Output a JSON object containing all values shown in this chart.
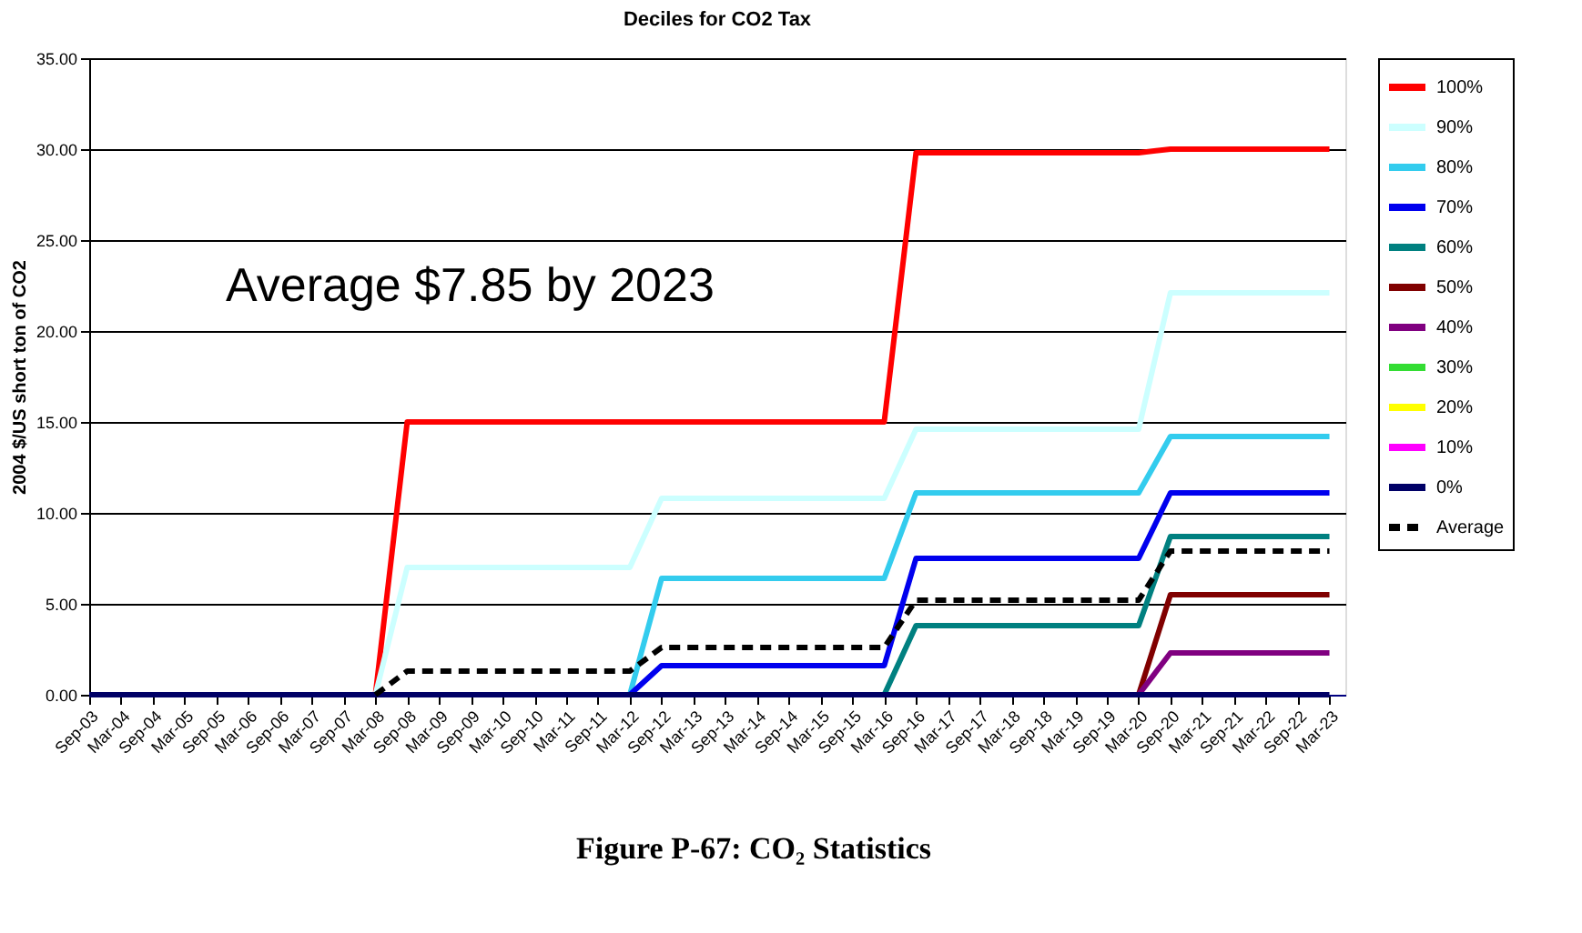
{
  "chart_data": {
    "type": "line",
    "title": "Deciles for CO2 Tax",
    "ylabel": "2004 $/US short ton of CO2",
    "categories": [
      "Sep-03",
      "Mar-04",
      "Sep-04",
      "Mar-05",
      "Sep-05",
      "Mar-06",
      "Sep-06",
      "Mar-07",
      "Sep-07",
      "Mar-08",
      "Sep-08",
      "Mar-09",
      "Sep-09",
      "Mar-10",
      "Sep-10",
      "Mar-11",
      "Sep-11",
      "Mar-12",
      "Sep-12",
      "Mar-13",
      "Sep-13",
      "Mar-14",
      "Sep-14",
      "Mar-15",
      "Sep-15",
      "Mar-16",
      "Sep-16",
      "Mar-17",
      "Sep-17",
      "Mar-18",
      "Sep-18",
      "Mar-19",
      "Sep-19",
      "Mar-20",
      "Sep-20",
      "Mar-21",
      "Sep-21",
      "Mar-22",
      "Sep-22",
      "Mar-23"
    ],
    "series": [
      {
        "name": "100%",
        "color": "#ff0000",
        "values": [
          null,
          null,
          null,
          null,
          null,
          null,
          null,
          null,
          null,
          0,
          15,
          15,
          15,
          15,
          15,
          15,
          15,
          15,
          15,
          15,
          15,
          15,
          15,
          15,
          15,
          15,
          29.8,
          29.8,
          29.8,
          29.8,
          29.8,
          29.8,
          29.8,
          29.8,
          30,
          30,
          30,
          30,
          30,
          30
        ]
      },
      {
        "name": "90%",
        "color": "#ccffff",
        "values": [
          null,
          null,
          null,
          null,
          null,
          null,
          null,
          null,
          null,
          0,
          7,
          7,
          7,
          7,
          7,
          7,
          7,
          7,
          10.8,
          10.8,
          10.8,
          10.8,
          10.8,
          10.8,
          10.8,
          10.8,
          14.6,
          14.6,
          14.6,
          14.6,
          14.6,
          14.6,
          14.6,
          14.6,
          22.1,
          22.1,
          22.1,
          22.1,
          22.1,
          22.1
        ]
      },
      {
        "name": "80%",
        "color": "#33ccee",
        "values": [
          null,
          null,
          null,
          null,
          null,
          null,
          null,
          null,
          null,
          null,
          null,
          null,
          null,
          null,
          null,
          null,
          null,
          0,
          6.4,
          6.4,
          6.4,
          6.4,
          6.4,
          6.4,
          6.4,
          6.4,
          11.1,
          11.1,
          11.1,
          11.1,
          11.1,
          11.1,
          11.1,
          11.1,
          14.2,
          14.2,
          14.2,
          14.2,
          14.2,
          14.2
        ]
      },
      {
        "name": "70%",
        "color": "#0000ee",
        "values": [
          null,
          null,
          null,
          null,
          null,
          null,
          null,
          null,
          null,
          null,
          null,
          null,
          null,
          null,
          null,
          null,
          null,
          0,
          1.6,
          1.6,
          1.6,
          1.6,
          1.6,
          1.6,
          1.6,
          1.6,
          7.5,
          7.5,
          7.5,
          7.5,
          7.5,
          7.5,
          7.5,
          7.5,
          11.1,
          11.1,
          11.1,
          11.1,
          11.1,
          11.1
        ]
      },
      {
        "name": "60%",
        "color": "#008080",
        "values": [
          null,
          null,
          null,
          null,
          null,
          null,
          null,
          null,
          null,
          null,
          null,
          null,
          null,
          null,
          null,
          null,
          null,
          null,
          null,
          null,
          null,
          null,
          null,
          null,
          null,
          0,
          3.8,
          3.8,
          3.8,
          3.8,
          3.8,
          3.8,
          3.8,
          3.8,
          8.7,
          8.7,
          8.7,
          8.7,
          8.7,
          8.7
        ]
      },
      {
        "name": "50%",
        "color": "#800000",
        "values": [
          null,
          null,
          null,
          null,
          null,
          null,
          null,
          null,
          null,
          null,
          null,
          null,
          null,
          null,
          null,
          null,
          null,
          null,
          null,
          null,
          null,
          null,
          null,
          null,
          null,
          null,
          null,
          null,
          null,
          null,
          null,
          null,
          null,
          0,
          5.5,
          5.5,
          5.5,
          5.5,
          5.5,
          5.5
        ]
      },
      {
        "name": "40%",
        "color": "#800080",
        "values": [
          null,
          null,
          null,
          null,
          null,
          null,
          null,
          null,
          null,
          null,
          null,
          null,
          null,
          null,
          null,
          null,
          null,
          null,
          null,
          null,
          null,
          null,
          null,
          null,
          null,
          null,
          null,
          null,
          null,
          null,
          null,
          null,
          null,
          0,
          2.3,
          2.3,
          2.3,
          2.3,
          2.3,
          2.3
        ]
      },
      {
        "name": "30%",
        "color": "#33dd33",
        "values": [
          null,
          null,
          null,
          null,
          null,
          null,
          null,
          null,
          null,
          null,
          null,
          null,
          null,
          null,
          null,
          null,
          null,
          null,
          null,
          null,
          null,
          null,
          null,
          null,
          null,
          null,
          null,
          null,
          null,
          null,
          null,
          null,
          null,
          null,
          null,
          null,
          null,
          null,
          null,
          null
        ]
      },
      {
        "name": "20%",
        "color": "#ffff00",
        "values": [
          null,
          null,
          null,
          null,
          null,
          null,
          null,
          null,
          null,
          null,
          null,
          null,
          null,
          null,
          null,
          null,
          null,
          null,
          null,
          null,
          null,
          null,
          null,
          null,
          null,
          null,
          null,
          null,
          null,
          null,
          null,
          null,
          null,
          null,
          null,
          null,
          null,
          null,
          null,
          null
        ]
      },
      {
        "name": "10%",
        "color": "#ff00ff",
        "values": [
          null,
          null,
          null,
          null,
          null,
          null,
          null,
          null,
          null,
          null,
          null,
          null,
          null,
          null,
          null,
          null,
          null,
          null,
          null,
          null,
          null,
          null,
          null,
          null,
          null,
          null,
          null,
          null,
          null,
          null,
          null,
          null,
          null,
          null,
          null,
          null,
          null,
          null,
          null,
          null
        ]
      },
      {
        "name": "0%",
        "color": "#000066",
        "values": [
          0,
          0,
          0,
          0,
          0,
          0,
          0,
          0,
          0,
          0,
          0,
          0,
          0,
          0,
          0,
          0,
          0,
          0,
          0,
          0,
          0,
          0,
          0,
          0,
          0,
          0,
          0,
          0,
          0,
          0,
          0,
          0,
          0,
          0,
          0,
          0,
          0,
          0,
          0,
          0
        ]
      },
      {
        "name": "Average",
        "color": "#000000",
        "line_style": "dashed",
        "values": [
          null,
          null,
          null,
          null,
          null,
          null,
          null,
          null,
          null,
          0,
          1.3,
          1.3,
          1.3,
          1.3,
          1.3,
          1.3,
          1.3,
          1.3,
          2.6,
          2.6,
          2.6,
          2.6,
          2.6,
          2.6,
          2.6,
          2.6,
          5.2,
          5.2,
          5.2,
          5.2,
          5.2,
          5.2,
          5.2,
          5.2,
          7.9,
          7.9,
          7.9,
          7.9,
          7.9,
          7.9
        ]
      }
    ],
    "ylim": [
      0,
      35
    ],
    "yticks": [
      {
        "value": 0,
        "label": "0.00"
      },
      {
        "value": 5,
        "label": "5.00"
      },
      {
        "value": 10,
        "label": "10.00"
      },
      {
        "value": 15,
        "label": "15.00"
      },
      {
        "value": 20,
        "label": "20.00"
      },
      {
        "value": 25,
        "label": "25.00"
      },
      {
        "value": 30,
        "label": "30.00"
      },
      {
        "value": 35,
        "label": "35.00"
      }
    ],
    "grid": "y",
    "legend": "right",
    "line_style": "solid",
    "marker": "none",
    "annotations": [
      "Average $7.85 by 2023",
      "Figure P-67:  CO₂ Statistics"
    ]
  }
}
